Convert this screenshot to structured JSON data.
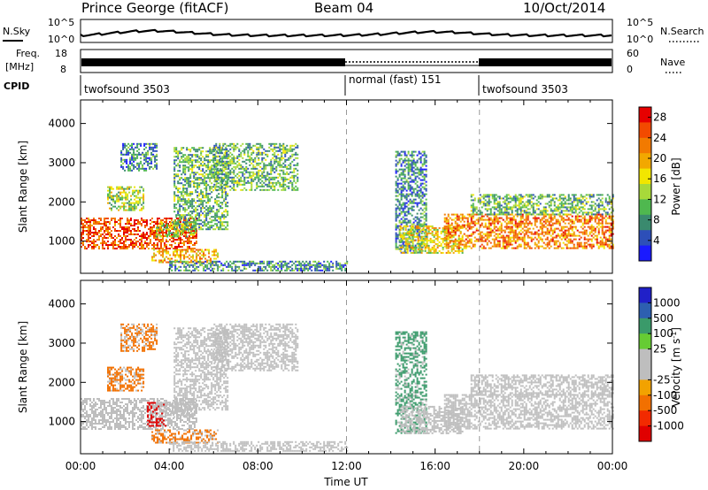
{
  "header": {
    "station": "Prince George (fitACF)",
    "beam": "Beam 04",
    "date": "10/Oct/2014"
  },
  "noise_panel": {
    "left_label": "N.Sky",
    "right_label": "N.Search",
    "left_ticks": [
      "10^5",
      "10^0"
    ],
    "right_ticks": [
      "10^5",
      "10^0"
    ]
  },
  "freq_panel": {
    "left_label_1": "Freq.",
    "left_label_2": "[MHz]",
    "left_ticks": [
      "18",
      "8"
    ],
    "right_label": "Nave",
    "right_ticks": [
      "60",
      "0"
    ]
  },
  "cpid_panel": {
    "label": "CPID",
    "segments": [
      {
        "label": "twofsound 3503",
        "start_h": 0,
        "end_h": 12
      },
      {
        "label": "normal (fast) 151",
        "start_h": 12,
        "end_h": 18
      },
      {
        "label": "twofsound 3503",
        "start_h": 18,
        "end_h": 24
      }
    ]
  },
  "colors": {
    "power_scale": [
      "#1a1aff",
      "#2d4fb8",
      "#3a8a6e",
      "#4fb84f",
      "#a8d93a",
      "#f2e600",
      "#f2a800",
      "#f27a00",
      "#f24a00",
      "#e60000"
    ],
    "velocity_scale": [
      "#2020c8",
      "#2d5fb0",
      "#3a9a6a",
      "#66cc33",
      "#bebebe",
      "#bebebe",
      "#f2a200",
      "#f27000",
      "#f22a00",
      "#e00000"
    ]
  },
  "chart_data": [
    {
      "type": "heatmap",
      "title": "Power",
      "xlabel": "Time UT",
      "ylabel": "Slant Range [km]",
      "xlim": [
        0,
        24
      ],
      "ylim": [
        180,
        4600
      ],
      "xticks": [
        0,
        4,
        8,
        12,
        16,
        20,
        24
      ],
      "xtick_labels": [
        "00:00",
        "04:00",
        "08:00",
        "12:00",
        "16:00",
        "20:00",
        "00:00"
      ],
      "yticks": [
        1000,
        2000,
        3000,
        4000
      ],
      "ytick_labels": [
        "1000",
        "2000",
        "3000",
        "4000"
      ],
      "colorbar": {
        "label": "Power [dB]",
        "range": [
          0,
          30
        ],
        "ticks": [
          4,
          8,
          12,
          16,
          20,
          24,
          28
        ],
        "tick_labels": [
          "4",
          "8",
          "12",
          "16",
          "20",
          "24",
          "28"
        ]
      },
      "echo_regions": [
        {
          "name": "near-range band",
          "t": [
            0,
            5.2
          ],
          "r": [
            800,
            1600
          ],
          "value": 24
        },
        {
          "name": "morning patch",
          "t": [
            1.2,
            2.8
          ],
          "r": [
            1800,
            2400
          ],
          "value": 14
        },
        {
          "name": "sporadic high echoes",
          "t": [
            1.8,
            3.4
          ],
          "r": [
            2800,
            3500
          ],
          "value": 8
        },
        {
          "name": "descending arc",
          "t": [
            3.2,
            6.2
          ],
          "r": [
            450,
            800
          ],
          "value": 20
        },
        {
          "name": "mid-range patch",
          "t": [
            3.4,
            5.2
          ],
          "r": [
            1100,
            1500
          ],
          "value": 14
        },
        {
          "name": "dawn rising arc",
          "t": [
            4.2,
            6.6
          ],
          "r": [
            1300,
            3400
          ],
          "value": 10
        },
        {
          "name": "far-range arc",
          "t": [
            6.0,
            9.8
          ],
          "r": [
            2300,
            3500
          ],
          "value": 11
        },
        {
          "name": "low-range ground scatter",
          "t": [
            4.0,
            12.0
          ],
          "r": [
            250,
            500
          ],
          "value": 6
        },
        {
          "name": "afternoon arc",
          "t": [
            14.2,
            15.6
          ],
          "r": [
            700,
            3300
          ],
          "value": 7
        },
        {
          "name": "afternoon patch",
          "t": [
            14.4,
            17.2
          ],
          "r": [
            700,
            1400
          ],
          "value": 16
        },
        {
          "name": "evening band",
          "t": [
            16.4,
            24
          ],
          "r": [
            800,
            1700
          ],
          "value": 22
        },
        {
          "name": "evening upper",
          "t": [
            17.6,
            24
          ],
          "r": [
            1700,
            2200
          ],
          "value": 9
        }
      ],
      "vertical_markers_h": [
        12,
        18
      ]
    },
    {
      "type": "heatmap",
      "title": "Velocity",
      "xlabel": "Time UT",
      "ylabel": "Slant Range [km]",
      "xlim": [
        0,
        24
      ],
      "ylim": [
        180,
        4600
      ],
      "xticks": [
        0,
        4,
        8,
        12,
        16,
        20,
        24
      ],
      "xtick_labels": [
        "00:00",
        "04:00",
        "08:00",
        "12:00",
        "16:00",
        "20:00",
        "00:00"
      ],
      "yticks": [
        1000,
        2000,
        3000,
        4000
      ],
      "ytick_labels": [
        "1000",
        "2000",
        "3000",
        "4000"
      ],
      "colorbar": {
        "label": "Velocity [m s^-1]",
        "range": [
          -1200,
          1200
        ],
        "ticks": [
          1000,
          500,
          100,
          25,
          -25,
          -100,
          -500,
          -1000
        ],
        "tick_labels": [
          "1000",
          "500",
          "100",
          "25",
          "-25",
          "-100",
          "-500",
          "-1000"
        ]
      },
      "echo_regions": [
        {
          "name": "near-range band",
          "t": [
            0,
            5.2
          ],
          "r": [
            800,
            1600
          ],
          "value": 0
        },
        {
          "name": "morning patch",
          "t": [
            1.2,
            2.8
          ],
          "r": [
            1800,
            2400
          ],
          "value": -120
        },
        {
          "name": "sporadic high echoes",
          "t": [
            1.8,
            3.4
          ],
          "r": [
            2800,
            3500
          ],
          "value": -300
        },
        {
          "name": "red streak",
          "t": [
            3.0,
            3.8
          ],
          "r": [
            900,
            1500
          ],
          "value": -900
        },
        {
          "name": "descending arc",
          "t": [
            3.2,
            6.2
          ],
          "r": [
            450,
            800
          ],
          "value": -400
        },
        {
          "name": "mid-range patch",
          "t": [
            3.4,
            5.2
          ],
          "r": [
            1100,
            1500
          ],
          "value": 0
        },
        {
          "name": "dawn rising arc",
          "t": [
            4.2,
            6.6
          ],
          "r": [
            1300,
            3400
          ],
          "value": 0
        },
        {
          "name": "far-range arc",
          "t": [
            6.0,
            9.8
          ],
          "r": [
            2300,
            3500
          ],
          "value": 0
        },
        {
          "name": "low-range ground scatter",
          "t": [
            4.0,
            12.0
          ],
          "r": [
            250,
            500
          ],
          "value": 0
        },
        {
          "name": "afternoon arc",
          "t": [
            14.2,
            15.6
          ],
          "r": [
            700,
            3300
          ],
          "value": 150
        },
        {
          "name": "afternoon patch",
          "t": [
            14.4,
            17.2
          ],
          "r": [
            700,
            1400
          ],
          "value": 0
        },
        {
          "name": "evening band",
          "t": [
            16.4,
            24
          ],
          "r": [
            800,
            1700
          ],
          "value": 0
        },
        {
          "name": "evening upper",
          "t": [
            17.6,
            24
          ],
          "r": [
            1700,
            2200
          ],
          "value": 0
        }
      ],
      "vertical_markers_h": [
        12,
        18
      ]
    }
  ]
}
